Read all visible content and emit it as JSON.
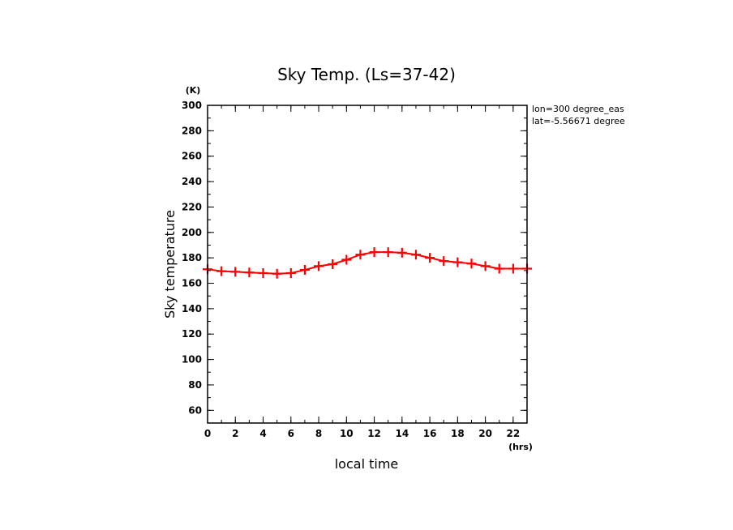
{
  "chart_data": {
    "type": "line",
    "title": "Sky Temp. (Ls=37-42)",
    "xlabel": "local time",
    "ylabel": "Sky temperature",
    "x_unit": "(hrs)",
    "y_unit": "(K)",
    "xlim": [
      0,
      23
    ],
    "ylim": [
      50,
      300
    ],
    "x_ticks": [
      0,
      2,
      4,
      6,
      8,
      10,
      12,
      14,
      16,
      18,
      20,
      22
    ],
    "y_ticks": [
      60,
      80,
      100,
      120,
      140,
      160,
      180,
      200,
      220,
      240,
      260,
      280,
      300
    ],
    "grid": false,
    "annotations": [
      "lon=300 degree_eas",
      "lat=-5.56671 degree"
    ],
    "series": [
      {
        "color": "#ff0000",
        "marker": "plus",
        "x": [
          0,
          1,
          2,
          3,
          4,
          5,
          6,
          7,
          8,
          9,
          10,
          11,
          12,
          13,
          14,
          15,
          16,
          17,
          18,
          19,
          20,
          21,
          22,
          23
        ],
        "y": [
          171,
          169.5,
          169,
          168.5,
          168,
          167.5,
          168,
          170.5,
          173.5,
          175,
          178.5,
          182.5,
          184.5,
          184.5,
          184,
          182.5,
          180,
          177.5,
          176.5,
          175.5,
          173.5,
          171.5,
          171.5,
          171.5
        ]
      }
    ]
  }
}
